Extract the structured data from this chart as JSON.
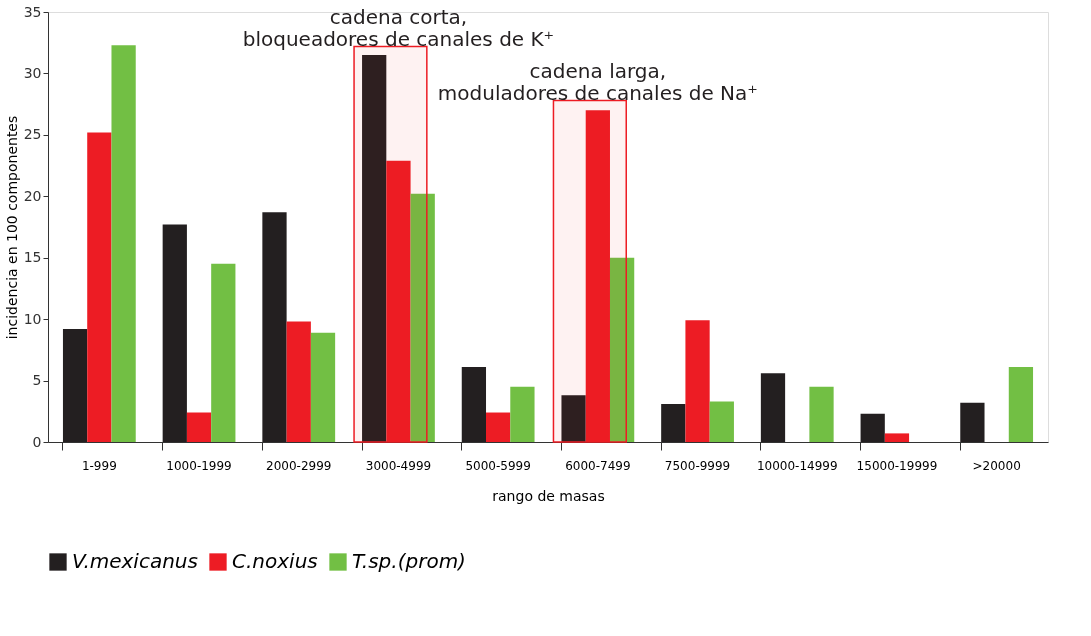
{
  "chart_data": {
    "type": "bar",
    "xlabel": "rango de masas",
    "ylabel": "incidencia en 100 componentes",
    "categories": [
      "1-999",
      "1000-1999",
      "2000-2999",
      "3000-4999",
      "5000-5999",
      "6000-7499",
      "7500-9999",
      "10000-14999",
      "15000-19999",
      ">20000"
    ],
    "series": [
      {
        "name": "V.mexicanus",
        "color": "#231f20",
        "values": [
          9.2,
          17.7,
          18.7,
          31.5,
          6.1,
          3.8,
          3.1,
          5.6,
          2.3,
          3.2
        ]
      },
      {
        "name": "C.noxius",
        "color": "#ed1c24",
        "values": [
          25.2,
          2.4,
          9.8,
          22.9,
          2.4,
          27.0,
          9.9,
          0,
          0.7,
          0
        ]
      },
      {
        "name": "T.sp.(prom)",
        "color": "#72bf44",
        "values": [
          32.3,
          14.5,
          8.9,
          20.2,
          4.5,
          15.0,
          3.3,
          4.5,
          0,
          6.1
        ]
      }
    ],
    "ylim": [
      0,
      35
    ],
    "yticks": [
      0,
      5,
      10,
      15,
      20,
      25,
      30,
      35
    ],
    "grid": false,
    "legend": "bottom left",
    "bands": [
      {
        "axis": "x",
        "from": "3000-4999",
        "to": "3000-4999",
        "color": "#ed1c24"
      },
      {
        "axis": "x",
        "from": "6000-7499",
        "to": "6000-7499",
        "color": "#ed1c24"
      }
    ],
    "annotations": [
      {
        "text": "cadena corta,\nbloqueadores de canales de K⁺",
        "x": "3000-4999",
        "y": 32.2
      },
      {
        "text": "cadena larga,\nmoduladores de canales de Na⁺",
        "x": "6000-7499",
        "y": 27.8
      }
    ]
  }
}
